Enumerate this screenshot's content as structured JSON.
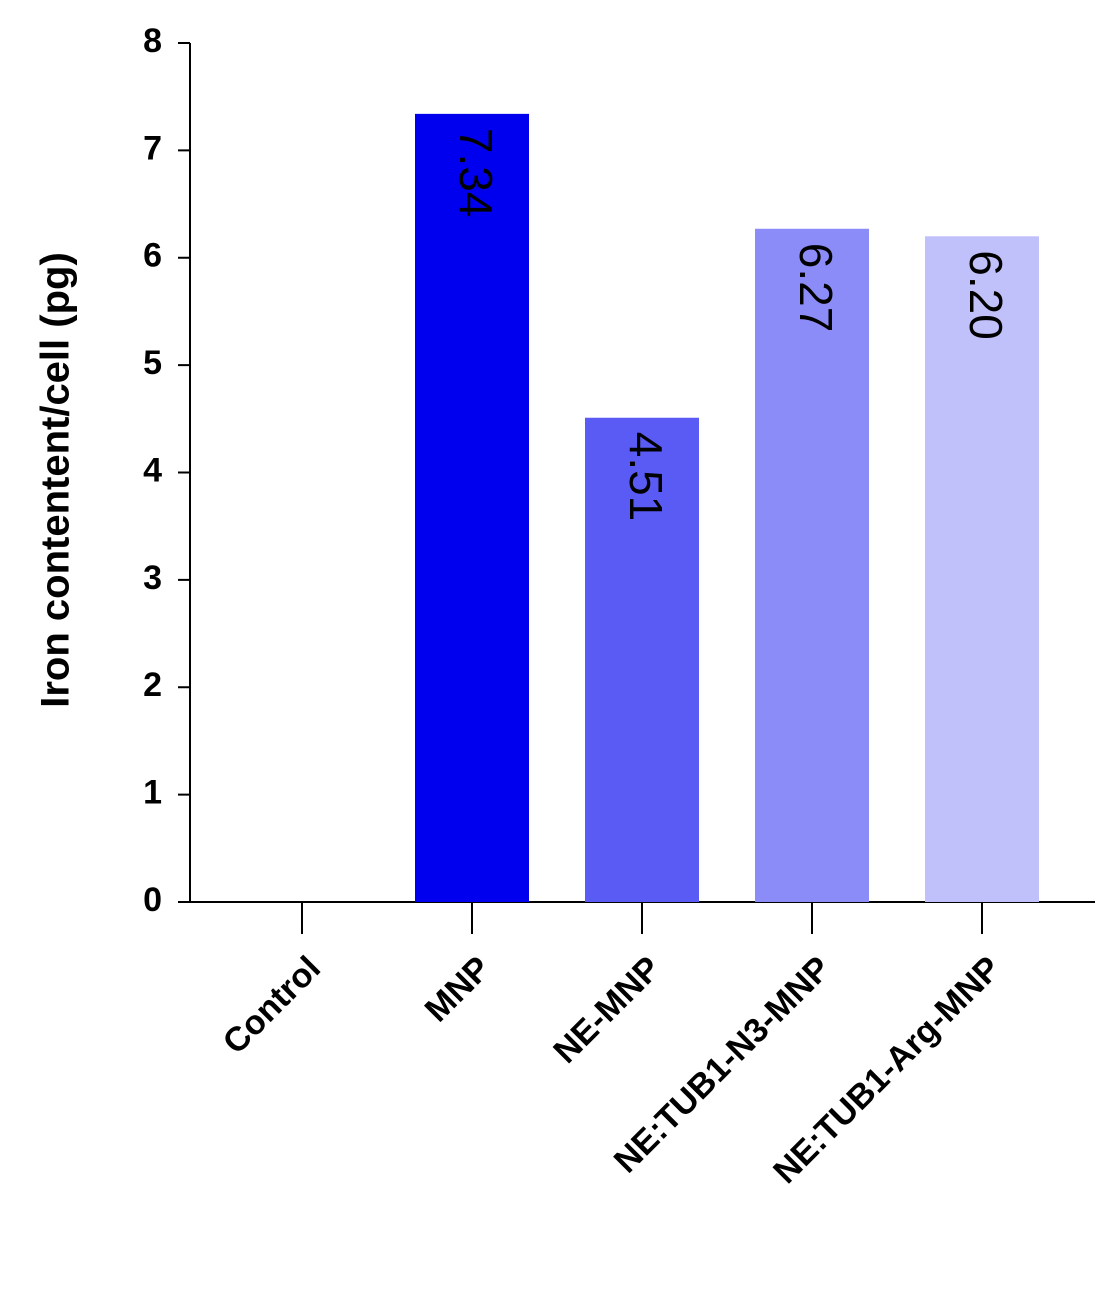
{
  "chart_data": {
    "type": "bar",
    "y_label": "Iron contentent/cell (pg)",
    "categories": [
      "Control",
      "MNP",
      "NE-MNP",
      "NE:TUB1-N3-MNP",
      "NE:TUB1-Arg-MNP"
    ],
    "values": [
      0,
      7.34,
      4.51,
      6.27,
      6.2
    ],
    "value_labels": [
      null,
      "7.34",
      "4.51",
      "6.27",
      "6.20"
    ],
    "colors": [
      "#0000ee",
      "#0000ee",
      "#5a5af5",
      "#8c8cf8",
      "#c0c0fb"
    ],
    "ylim": [
      0,
      8
    ],
    "yticks": [
      0,
      1,
      2,
      3,
      4,
      5,
      6,
      7,
      8
    ]
  }
}
